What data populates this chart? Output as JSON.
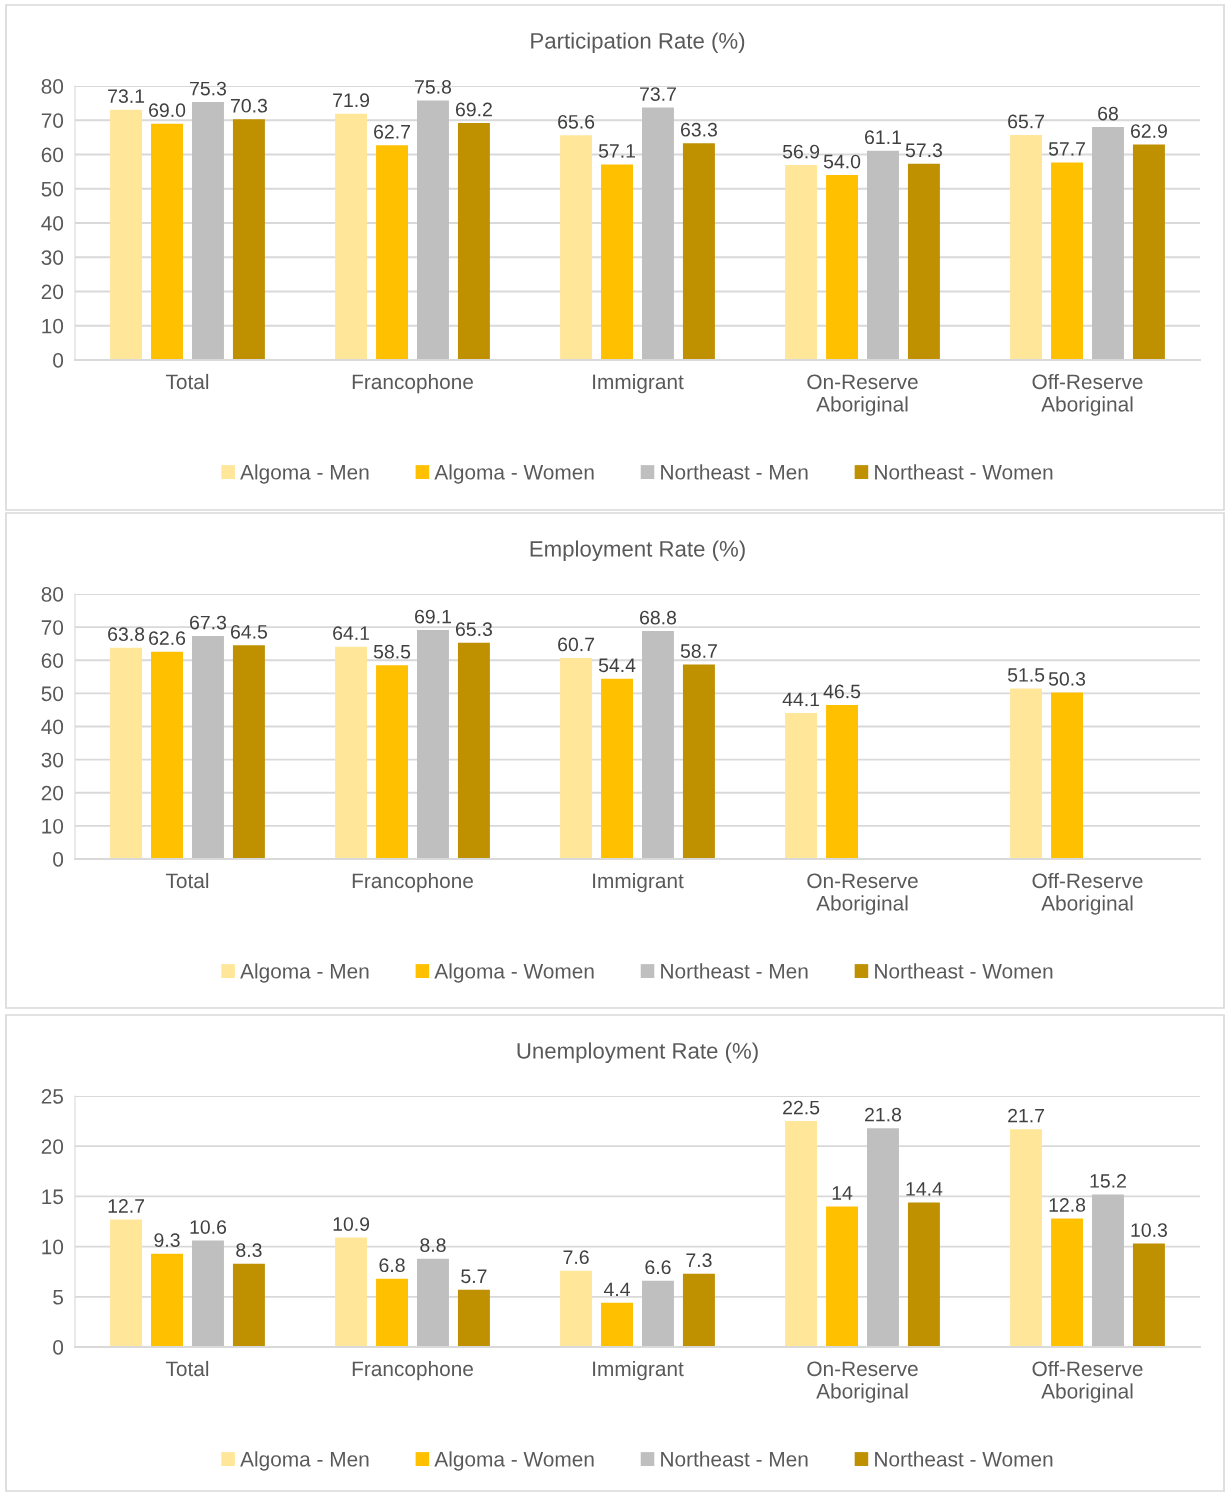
{
  "chart_data": [
    {
      "type": "bar",
      "title": "Participation Rate (%)",
      "categories": [
        "Total",
        "Francophone",
        "Immigrant",
        "On-Reserve\nAboriginal",
        "Off-Reserve\nAboriginal"
      ],
      "series": [
        {
          "name": "Algoma - Men",
          "color": "#ffe699",
          "values": [
            73.1,
            71.9,
            65.6,
            56.9,
            65.7
          ],
          "value_labels": [
            "73.1",
            "71.9",
            "65.6",
            "56.9",
            "65.7"
          ]
        },
        {
          "name": "Algoma - Women",
          "color": "#ffc000",
          "values": [
            69.0,
            62.7,
            57.1,
            54.0,
            57.7
          ],
          "value_labels": [
            "69.0",
            "62.7",
            "57.1",
            "54.0",
            "57.7"
          ]
        },
        {
          "name": "Northeast - Men",
          "color": "#bfbfbf",
          "values": [
            75.3,
            75.8,
            73.7,
            61.1,
            68
          ],
          "value_labels": [
            "75.3",
            "75.8",
            "73.7",
            "61.1",
            "68"
          ]
        },
        {
          "name": "Northeast - Women",
          "color": "#bf9000",
          "values": [
            70.3,
            69.2,
            63.3,
            57.3,
            62.9
          ],
          "value_labels": [
            "70.3",
            "69.2",
            "63.3",
            "57.3",
            "62.9"
          ]
        }
      ],
      "ylim": [
        0,
        80
      ],
      "yticks": [
        0,
        10,
        20,
        30,
        40,
        50,
        60,
        70,
        80
      ],
      "grid": "y",
      "legend": "bottom"
    },
    {
      "type": "bar",
      "title": "Employment Rate (%)",
      "categories": [
        "Total",
        "Francophone",
        "Immigrant",
        "On-Reserve\nAboriginal",
        "Off-Reserve\nAboriginal"
      ],
      "series": [
        {
          "name": "Algoma - Men",
          "color": "#ffe699",
          "values": [
            63.8,
            64.1,
            60.7,
            44.1,
            51.5
          ],
          "value_labels": [
            "63.8",
            "64.1",
            "60.7",
            "44.1",
            "51.5"
          ]
        },
        {
          "name": "Algoma - Women",
          "color": "#ffc000",
          "values": [
            62.6,
            58.5,
            54.4,
            46.5,
            50.3
          ],
          "value_labels": [
            "62.6",
            "58.5",
            "54.4",
            "46.5",
            "50.3"
          ]
        },
        {
          "name": "Northeast - Men",
          "color": "#bfbfbf",
          "values": [
            67.3,
            69.1,
            68.8,
            null,
            null
          ],
          "value_labels": [
            "67.3",
            "69.1",
            "68.8",
            null,
            null
          ]
        },
        {
          "name": "Northeast - Women",
          "color": "#bf9000",
          "values": [
            64.5,
            65.3,
            58.7,
            null,
            null
          ],
          "value_labels": [
            "64.5",
            "65.3",
            "58.7",
            null,
            null
          ]
        }
      ],
      "ylim": [
        0,
        80
      ],
      "yticks": [
        0,
        10,
        20,
        30,
        40,
        50,
        60,
        70,
        80
      ],
      "grid": "y",
      "legend": "bottom"
    },
    {
      "type": "bar",
      "title": "Unemployment Rate (%)",
      "categories": [
        "Total",
        "Francophone",
        "Immigrant",
        "On-Reserve\nAboriginal",
        "Off-Reserve\nAboriginal"
      ],
      "series": [
        {
          "name": "Algoma - Men",
          "color": "#ffe699",
          "values": [
            12.7,
            10.9,
            7.6,
            22.5,
            21.7
          ],
          "value_labels": [
            "12.7",
            "10.9",
            "7.6",
            "22.5",
            "21.7"
          ]
        },
        {
          "name": "Algoma - Women",
          "color": "#ffc000",
          "values": [
            9.3,
            6.8,
            4.4,
            14,
            12.8
          ],
          "value_labels": [
            "9.3",
            "6.8",
            "4.4",
            "14",
            "12.8"
          ]
        },
        {
          "name": "Northeast - Men",
          "color": "#bfbfbf",
          "values": [
            10.6,
            8.8,
            6.6,
            21.8,
            15.2
          ],
          "value_labels": [
            "10.6",
            "8.8",
            "6.6",
            "21.8",
            "15.2"
          ]
        },
        {
          "name": "Northeast - Women",
          "color": "#bf9000",
          "values": [
            8.3,
            5.7,
            7.3,
            14.4,
            10.3
          ],
          "value_labels": [
            "8.3",
            "5.7",
            "7.3",
            "14.4",
            "10.3"
          ]
        }
      ],
      "ylim": [
        0,
        25
      ],
      "yticks": [
        0,
        5,
        10,
        15,
        20,
        25
      ],
      "grid": "y",
      "legend": "bottom"
    }
  ]
}
